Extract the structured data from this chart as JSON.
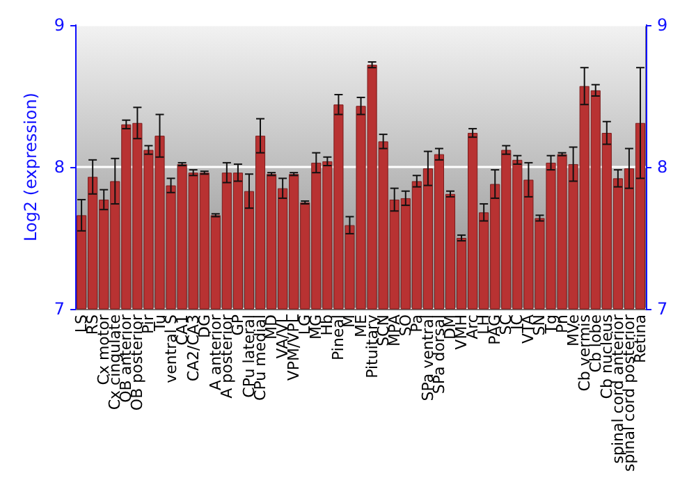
{
  "chart_data": {
    "type": "bar",
    "ylabel": "Log2 (expression)",
    "categories": [
      "LS",
      "RS",
      "Cx motor",
      "Cx cingulate",
      "OB anterior",
      "OB posterior",
      "Pir",
      "Tu",
      "ventral S",
      "CA1",
      "CA2/CA3",
      "DG",
      "A anterior",
      "A posterior",
      "GP",
      "CPu lateral",
      "CPu medial",
      "MD",
      "VA/VL",
      "VPM/VPL",
      "LG",
      "MG",
      "Hb",
      "Pineal",
      "M",
      "ME",
      "Pituitary",
      "SCN",
      "MPA",
      "SO",
      "Pa",
      "SPa ventral",
      "SPa dorsal",
      "DM",
      "VMH",
      "Arc",
      "LH",
      "PAG",
      "SC",
      "IC",
      "VTA",
      "SN",
      "Tg",
      "Pn",
      "MVe",
      "Cb vermis",
      "Cb lobe",
      "Cb nucleus",
      "spinal cord anterior",
      "spinal cord posterior",
      "Retina"
    ],
    "values": [
      7.66,
      7.93,
      7.77,
      7.9,
      8.3,
      8.31,
      8.12,
      8.22,
      7.87,
      8.02,
      7.96,
      7.96,
      7.66,
      7.96,
      7.96,
      7.83,
      8.22,
      7.95,
      7.85,
      7.95,
      7.75,
      8.03,
      8.04,
      8.44,
      7.59,
      8.43,
      8.72,
      8.18,
      7.77,
      7.78,
      7.9,
      7.99,
      8.09,
      7.81,
      7.5,
      8.24,
      7.68,
      7.88,
      8.12,
      8.05,
      7.91,
      7.64,
      8.03,
      8.09,
      8.02,
      8.57,
      8.54,
      8.24,
      7.92,
      7.99,
      8.31
    ],
    "errors": [
      0.11,
      0.12,
      0.07,
      0.16,
      0.03,
      0.11,
      0.03,
      0.15,
      0.05,
      0.01,
      0.02,
      0.01,
      0.01,
      0.07,
      0.06,
      0.12,
      0.12,
      0.01,
      0.07,
      0.01,
      0.01,
      0.07,
      0.03,
      0.07,
      0.06,
      0.06,
      0.02,
      0.05,
      0.08,
      0.05,
      0.04,
      0.12,
      0.04,
      0.02,
      0.02,
      0.03,
      0.06,
      0.1,
      0.03,
      0.03,
      0.12,
      0.02,
      0.05,
      0.01,
      0.12,
      0.13,
      0.04,
      0.08,
      0.06,
      0.14,
      0.39
    ],
    "color": "#b83232",
    "ylim": [
      7,
      9
    ],
    "yticks": [
      7,
      8,
      9
    ],
    "y2lim": [
      7,
      9
    ],
    "y2ticks": [
      7,
      8,
      9
    ],
    "grid": "y"
  }
}
